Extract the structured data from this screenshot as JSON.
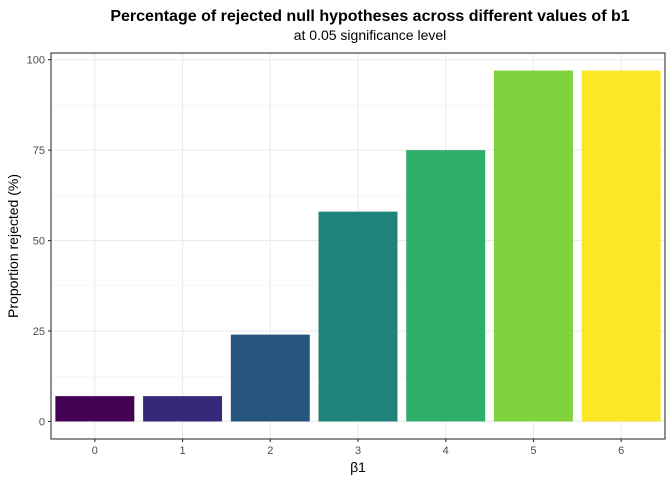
{
  "chart_data": {
    "type": "bar",
    "title": "Percentage of rejected null hypotheses across different values of b1",
    "subtitle": "at 0.05 significance level",
    "xlabel": "β1",
    "ylabel": "Proportion rejected (%)",
    "categories": [
      "0",
      "1",
      "2",
      "3",
      "4",
      "5",
      "6"
    ],
    "values": [
      7,
      7,
      24,
      58,
      75,
      97,
      97
    ],
    "colors": [
      "#440154",
      "#35297A",
      "#26557E",
      "#1F837B",
      "#2EAE6A",
      "#80D33C",
      "#FDE624"
    ],
    "ylim": [
      -4.85,
      101.85
    ],
    "yticks": [
      0,
      25,
      50,
      75,
      100
    ],
    "grid": true,
    "legend": "none"
  }
}
